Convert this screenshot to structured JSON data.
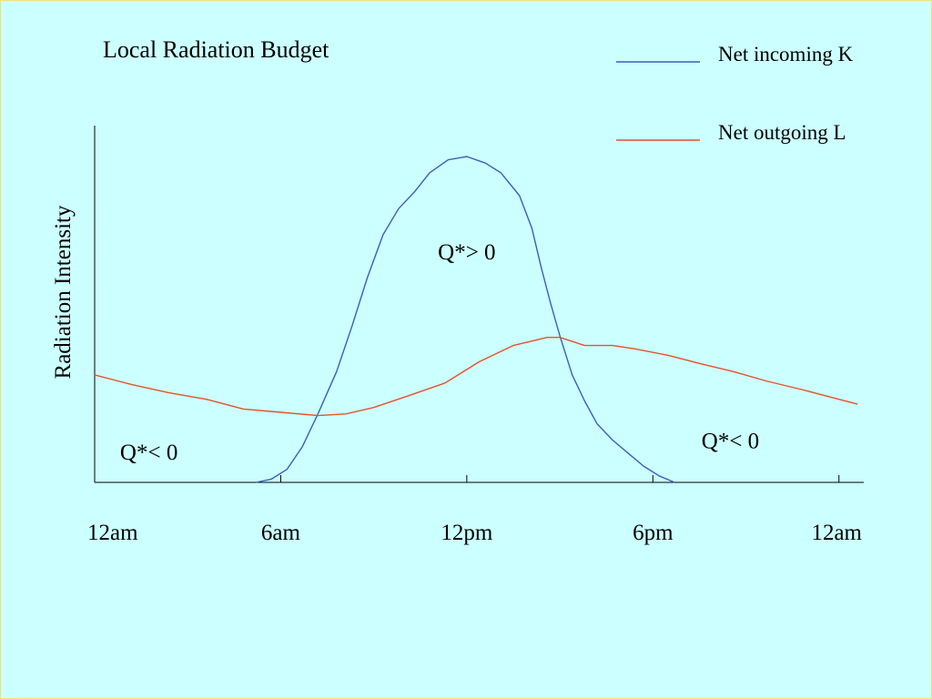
{
  "slide": {
    "background": "#ccffff",
    "border_color": "#f2e27a"
  },
  "chart_data": {
    "type": "line",
    "title": "Local Radiation Budget",
    "xlabel": "",
    "ylabel": "Radiation Intensity",
    "x_tick_labels": [
      "12am",
      "6am",
      "12pm",
      "6pm",
      "12am"
    ],
    "x_tick_hours": [
      0,
      6,
      12,
      18,
      24
    ],
    "xlim": [
      0,
      24.8
    ],
    "ylim": [
      0,
      100
    ],
    "y_ticks_shown": false,
    "grid": false,
    "legend_position": "top-right",
    "series": [
      {
        "name": "Net incoming K",
        "color": "#3c5fb5",
        "points": [
          [
            5.2,
            0
          ],
          [
            5.7,
            1
          ],
          [
            6.2,
            4
          ],
          [
            6.7,
            11
          ],
          [
            7.2,
            21
          ],
          [
            7.8,
            34
          ],
          [
            8.3,
            48
          ],
          [
            8.8,
            63
          ],
          [
            9.3,
            76
          ],
          [
            9.8,
            84
          ],
          [
            10.3,
            89
          ],
          [
            10.8,
            95
          ],
          [
            11.4,
            99
          ],
          [
            12.0,
            100
          ],
          [
            12.6,
            98
          ],
          [
            13.1,
            95
          ],
          [
            13.7,
            88
          ],
          [
            14.1,
            78
          ],
          [
            14.4,
            66
          ],
          [
            14.7,
            55
          ],
          [
            15.0,
            45
          ],
          [
            15.4,
            33
          ],
          [
            15.8,
            25
          ],
          [
            16.2,
            18
          ],
          [
            16.7,
            13
          ],
          [
            17.2,
            9
          ],
          [
            17.7,
            5
          ],
          [
            18.2,
            2
          ],
          [
            18.7,
            0
          ]
        ]
      },
      {
        "name": "Net outgoing L",
        "color": "#e8502a",
        "points": [
          [
            0,
            33
          ],
          [
            1.2,
            30
          ],
          [
            2.4,
            27.5
          ],
          [
            3.6,
            25.5
          ],
          [
            4.8,
            22.5
          ],
          [
            6.0,
            21.5
          ],
          [
            7.2,
            20.5
          ],
          [
            8.1,
            21
          ],
          [
            9.0,
            23
          ],
          [
            10.1,
            26.5
          ],
          [
            11.3,
            30.5
          ],
          [
            12.4,
            37
          ],
          [
            13.5,
            42
          ],
          [
            14.6,
            44.5
          ],
          [
            15.0,
            44.5
          ],
          [
            15.8,
            42
          ],
          [
            16.7,
            42
          ],
          [
            17.4,
            41
          ],
          [
            18.5,
            39
          ],
          [
            19.5,
            36.5
          ],
          [
            20.6,
            34
          ],
          [
            21.7,
            31
          ],
          [
            22.8,
            28.5
          ],
          [
            24.0,
            25.5
          ],
          [
            24.6,
            24
          ]
        ]
      }
    ],
    "annotations": [
      {
        "text": "Q*< 0",
        "hour": 1.75,
        "value": 9.5
      },
      {
        "text": "Q*> 0",
        "hour": 12.0,
        "value": 71
      },
      {
        "text": "Q*< 0",
        "hour": 20.5,
        "value": 13
      }
    ]
  }
}
